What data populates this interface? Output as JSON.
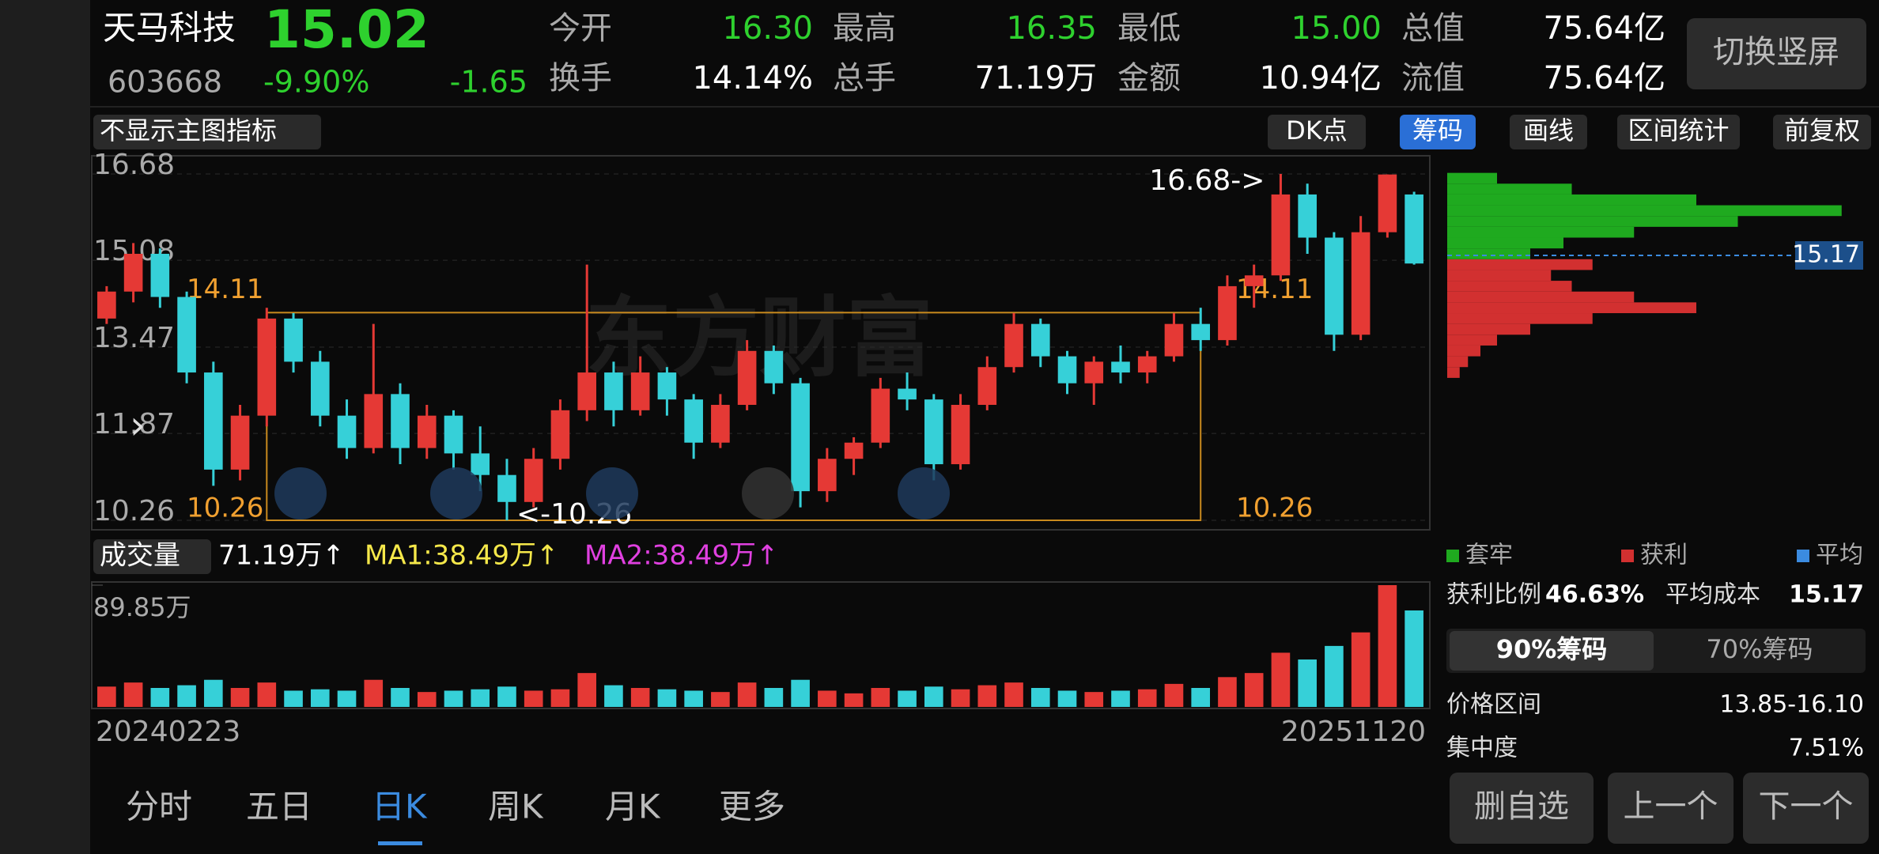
{
  "header": {
    "name": "天马科技",
    "price": "15.02",
    "code": "603668",
    "change_pct": "-9.90%",
    "change": "-1.65",
    "switch_button": "切换竖屏"
  },
  "stats": [
    [
      {
        "label": "今开",
        "value": "16.30"
      },
      {
        "label": "最高",
        "value": "16.35"
      },
      {
        "label": "最低",
        "value": "15.00"
      },
      {
        "label": "总值",
        "value": "75.64亿"
      }
    ],
    [
      {
        "label": "换手",
        "value": "14.14%"
      },
      {
        "label": "总手",
        "value": "71.19万"
      },
      {
        "label": "金额",
        "value": "10.94亿"
      },
      {
        "label": "流值",
        "value": "75.64亿"
      }
    ]
  ],
  "toolbar": {
    "indicator": "不显示主图指标",
    "dk": "DK点",
    "chips": "筹码",
    "draw": "画线",
    "range": "区间统计",
    "adjust": "前复权"
  },
  "kline": {
    "watermark": "东方财富",
    "ylim": [
      10.26,
      16.68
    ],
    "yticks": [
      16.68,
      15.08,
      13.47,
      11.87,
      10.26
    ],
    "box_high": 14.11,
    "box_low": 10.26,
    "max_label": "16.68->",
    "min_label": "<-10.26",
    "candles": [
      [
        14.0,
        14.6,
        13.9,
        14.5
      ],
      [
        14.5,
        15.4,
        14.3,
        15.2
      ],
      [
        15.2,
        15.3,
        14.2,
        14.4
      ],
      [
        14.4,
        14.5,
        12.8,
        13.0
      ],
      [
        13.0,
        13.2,
        10.9,
        11.2
      ],
      [
        11.2,
        12.4,
        11.0,
        12.2
      ],
      [
        12.2,
        14.2,
        12.0,
        14.0
      ],
      [
        14.0,
        14.1,
        13.0,
        13.2
      ],
      [
        13.2,
        13.4,
        12.0,
        12.2
      ],
      [
        12.2,
        12.5,
        11.4,
        11.6
      ],
      [
        11.6,
        13.9,
        11.5,
        12.6
      ],
      [
        12.6,
        12.8,
        11.3,
        11.6
      ],
      [
        11.6,
        12.4,
        11.4,
        12.2
      ],
      [
        12.2,
        12.3,
        11.2,
        11.5
      ],
      [
        11.5,
        12.0,
        10.8,
        11.1
      ],
      [
        11.1,
        11.4,
        10.26,
        10.6
      ],
      [
        10.6,
        11.6,
        10.5,
        11.4
      ],
      [
        11.4,
        12.5,
        11.2,
        12.3
      ],
      [
        12.3,
        15.0,
        12.1,
        13.0
      ],
      [
        13.0,
        13.2,
        12.0,
        12.3
      ],
      [
        12.3,
        13.3,
        12.2,
        13.0
      ],
      [
        13.0,
        13.1,
        12.2,
        12.5
      ],
      [
        12.5,
        12.6,
        11.4,
        11.7
      ],
      [
        11.7,
        12.6,
        11.6,
        12.4
      ],
      [
        12.4,
        13.6,
        12.3,
        13.4
      ],
      [
        13.4,
        13.5,
        12.6,
        12.8
      ],
      [
        12.8,
        12.9,
        10.5,
        10.8
      ],
      [
        10.8,
        11.6,
        10.6,
        11.4
      ],
      [
        11.4,
        11.8,
        11.1,
        11.7
      ],
      [
        11.7,
        12.9,
        11.6,
        12.7
      ],
      [
        12.7,
        13.0,
        12.3,
        12.5
      ],
      [
        12.5,
        12.6,
        11.0,
        11.3
      ],
      [
        11.3,
        12.6,
        11.2,
        12.4
      ],
      [
        12.4,
        13.3,
        12.3,
        13.1
      ],
      [
        13.1,
        14.1,
        13.0,
        13.9
      ],
      [
        13.9,
        14.0,
        13.1,
        13.3
      ],
      [
        13.3,
        13.4,
        12.6,
        12.8
      ],
      [
        12.8,
        13.3,
        12.4,
        13.2
      ],
      [
        13.2,
        13.5,
        12.8,
        13.0
      ],
      [
        13.0,
        13.4,
        12.8,
        13.3
      ],
      [
        13.3,
        14.1,
        13.2,
        13.9
      ],
      [
        13.9,
        14.2,
        13.4,
        13.6
      ],
      [
        13.6,
        14.8,
        13.5,
        14.6
      ],
      [
        14.6,
        15.0,
        14.2,
        14.8
      ],
      [
        14.8,
        16.68,
        14.7,
        16.3
      ],
      [
        16.3,
        16.5,
        15.2,
        15.5
      ],
      [
        15.5,
        15.6,
        13.4,
        13.7
      ],
      [
        13.7,
        15.9,
        13.6,
        15.6
      ],
      [
        15.6,
        16.67,
        15.5,
        16.67
      ],
      [
        16.3,
        16.35,
        15.0,
        15.02
      ]
    ],
    "chips": {
      "avg": 15.17,
      "xlim": [
        0,
        100
      ],
      "prices": [
        13.0,
        13.2,
        13.4,
        13.6,
        13.8,
        14.0,
        14.2,
        14.4,
        14.6,
        14.8,
        15.0,
        15.2,
        15.4,
        15.6,
        15.8,
        16.0,
        16.2,
        16.4,
        16.6
      ],
      "values": [
        3,
        5,
        8,
        12,
        20,
        35,
        60,
        45,
        30,
        25,
        35,
        20,
        28,
        45,
        70,
        95,
        60,
        30,
        12
      ]
    }
  },
  "volume": {
    "label": "成交量",
    "value": "71.19万↑",
    "ma1": "MA1:38.49万↑",
    "ma2": "MA2:38.49万↑",
    "vmax": {
      "value": 89.85,
      "label": "89.85万"
    },
    "values": [
      15,
      18,
      14,
      16,
      20,
      14,
      18,
      12,
      13,
      12,
      20,
      14,
      11,
      12,
      13,
      15,
      12,
      13,
      25,
      16,
      14,
      13,
      12,
      11,
      18,
      14,
      20,
      12,
      10,
      14,
      12,
      15,
      13,
      16,
      18,
      14,
      12,
      11,
      12,
      13,
      17,
      14,
      22,
      25,
      40,
      35,
      45,
      55,
      89.85,
      71.19
    ],
    "start_date": "20240223",
    "end_date": "20251120"
  },
  "chip_panel": {
    "legend": [
      "套牢",
      "获利",
      "平均"
    ],
    "profit_ratio_label": "获利比例",
    "profit_ratio": "46.63%",
    "avg_cost_label": "平均成本",
    "avg_cost": "15.17",
    "tabs": [
      "90%筹码",
      "70%筹码"
    ],
    "range_label": "价格区间",
    "range": "13.85-16.10",
    "concentration_label": "集中度",
    "concentration": "7.51%",
    "buttons": [
      "删自选",
      "上一个",
      "下一个"
    ]
  },
  "tabs": [
    "分时",
    "五日",
    "日K",
    "周K",
    "月K",
    "更多"
  ]
}
